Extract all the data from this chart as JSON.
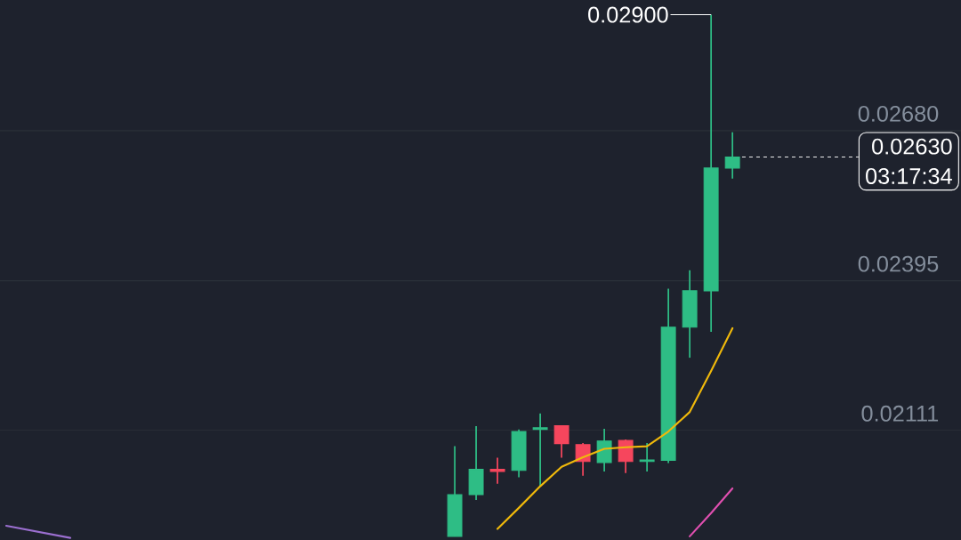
{
  "chart_data": {
    "type": "candlestick",
    "categories": [
      null,
      null,
      null,
      null,
      null,
      null,
      null,
      null,
      null,
      null,
      null,
      null,
      null,
      null,
      null,
      null,
      null,
      null,
      null,
      null,
      null,
      null,
      null,
      null,
      null,
      null,
      null,
      null,
      null,
      null,
      null,
      null,
      null,
      null,
      null,
      null,
      null,
      null,
      null,
      null,
      null,
      null,
      null,
      null,
      null
    ],
    "ohlc": [
      null,
      null,
      null,
      null,
      null,
      null,
      null,
      null,
      null,
      null,
      null,
      null,
      null,
      null,
      null,
      null,
      null,
      null,
      null,
      null,
      null,
      [
        0.0191,
        0.02081,
        0.0191,
        0.01989
      ],
      [
        0.01989,
        0.02119,
        0.01979,
        0.02037
      ],
      [
        0.02037,
        0.02059,
        0.0201,
        0.02033
      ],
      [
        0.02035,
        0.02113,
        0.02022,
        0.02109
      ],
      [
        0.02113,
        0.02143,
        0.02005,
        0.02116
      ],
      [
        0.0212,
        0.0212,
        0.02059,
        0.02086
      ],
      [
        0.02084,
        0.02087,
        0.02025,
        0.02052
      ],
      [
        0.0205,
        0.02114,
        0.02033,
        0.02091
      ],
      [
        0.02092,
        0.02094,
        0.0203,
        0.02052
      ],
      [
        0.02052,
        0.02087,
        0.02033,
        0.02055
      ],
      [
        0.02054,
        0.0238,
        0.02049,
        0.02307
      ],
      [
        0.02307,
        0.02415,
        0.02249,
        0.02376
      ],
      [
        0.02376,
        0.029,
        0.02298,
        0.02609
      ],
      [
        0.02609,
        0.02677,
        0.02589,
        0.0263
      ],
      null,
      null,
      null,
      null,
      null,
      null,
      null,
      null,
      null,
      null
    ],
    "colors": [
      null,
      null,
      null,
      null,
      null,
      null,
      null,
      null,
      null,
      null,
      null,
      null,
      null,
      null,
      null,
      null,
      null,
      null,
      null,
      null,
      null,
      "#2ebd85",
      "#2ebd85",
      "#f6465d",
      "#2ebd85",
      "#2ebd85",
      "#f6465d",
      "#f6465d",
      "#2ebd85",
      "#f6465d",
      "#2ebd85",
      "#2ebd85",
      "#2ebd85",
      "#2ebd85",
      "#2ebd85",
      null,
      null,
      null,
      null,
      null,
      null,
      null,
      null,
      null,
      null
    ],
    "series": [
      {
        "type": "line",
        "color": "#f0b90b",
        "values": [
          null,
          null,
          null,
          null,
          null,
          null,
          null,
          null,
          null,
          null,
          null,
          null,
          null,
          null,
          null,
          null,
          null,
          null,
          null,
          null,
          null,
          null,
          null,
          0.01924,
          0.01964,
          0.02005,
          0.02042,
          0.0206,
          0.02076,
          0.02079,
          0.02081,
          0.02109,
          0.02146,
          0.02224,
          0.02305,
          null,
          null,
          null,
          null,
          null,
          null,
          null,
          null,
          null,
          null
        ]
      },
      {
        "type": "line",
        "color": "#e04fb0",
        "values": [
          null,
          null,
          null,
          null,
          null,
          null,
          null,
          null,
          null,
          null,
          null,
          null,
          null,
          null,
          null,
          null,
          null,
          null,
          null,
          null,
          null,
          null,
          null,
          null,
          null,
          null,
          null,
          null,
          null,
          null,
          null,
          null,
          0.0191,
          0.01954,
          0.02001,
          null,
          null,
          null,
          null,
          null,
          null,
          null,
          null,
          null,
          null
        ]
      },
      {
        "type": "line",
        "color": "#9b6fd0",
        "values": [
          0.0193,
          null,
          null,
          0.01907,
          null,
          null,
          null,
          null,
          null,
          null,
          null,
          null,
          null,
          null,
          null,
          null,
          null,
          null,
          null,
          null,
          null,
          null,
          null,
          null,
          null,
          null,
          null,
          null,
          null,
          null,
          null,
          null,
          null,
          null,
          null,
          null,
          null,
          null,
          null,
          null,
          null,
          null,
          null,
          null,
          null
        ]
      }
    ],
    "ylim": [
      0.01903,
      0.02928
    ],
    "yticks": [
      0.02111,
      0.02395,
      {
        "value": 0.0268,
        "label": "0.02680"
      }
    ],
    "grid": "y",
    "tick_labels": "y",
    "ref_lines": [
      {
        "axis": "y",
        "value": 0.0263,
        "label": "0.02630",
        "color": "#ffffff",
        "line_style": "dashed"
      }
    ],
    "annotations": [
      "0.02900",
      "03:17:34"
    ]
  }
}
